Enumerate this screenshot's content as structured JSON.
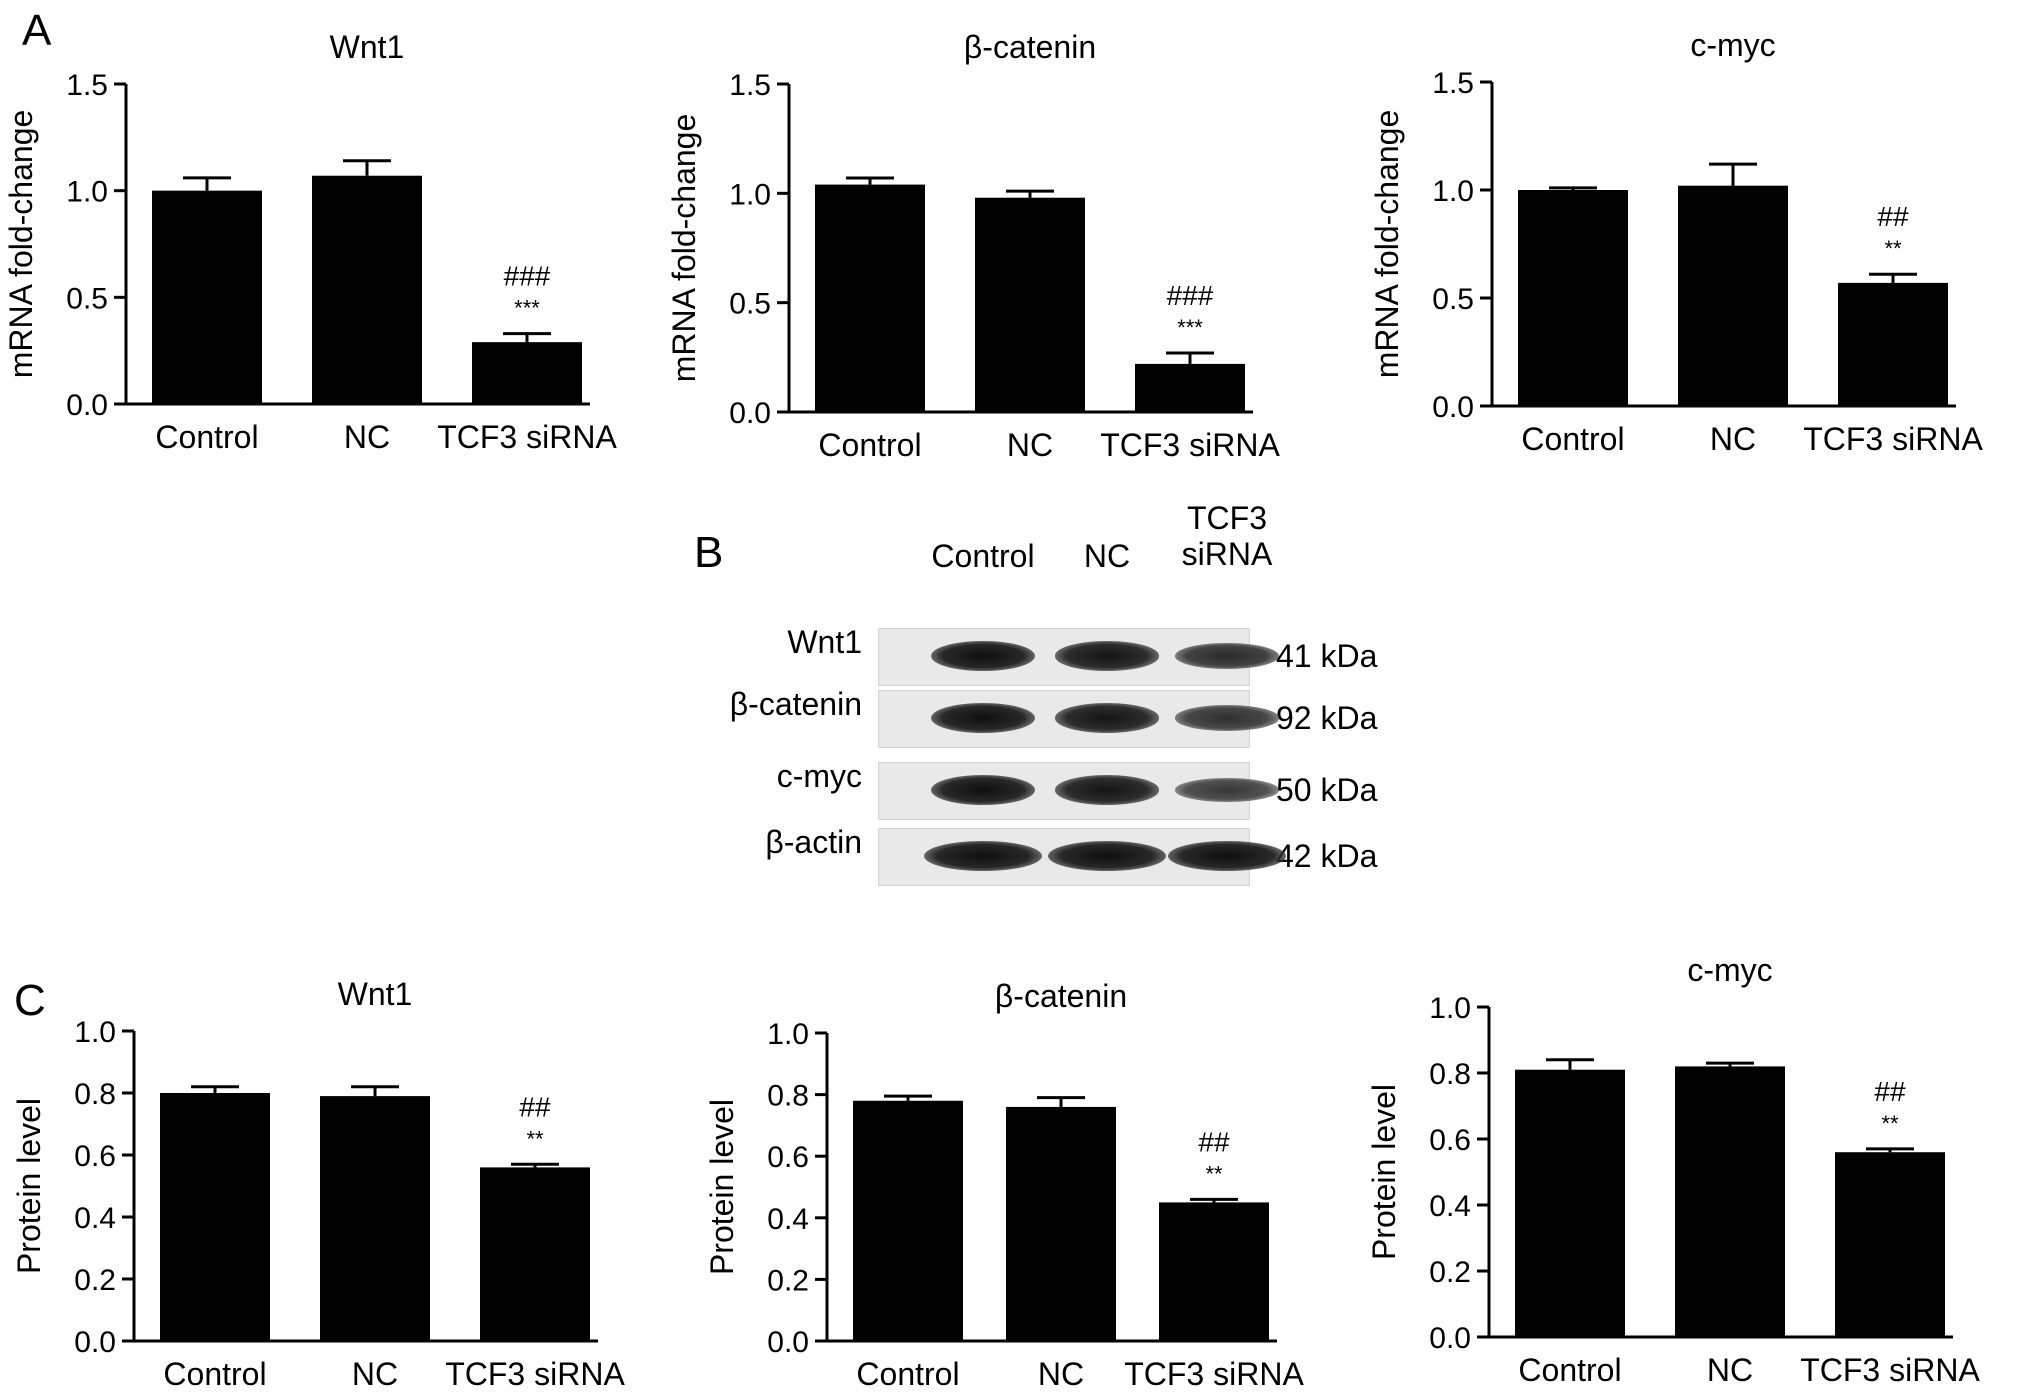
{
  "panels": {
    "A": {
      "letter": "A",
      "charts": [
        {
          "title": "Wnt1",
          "ylabel": "mRNA fold-change",
          "ylim": [
            0,
            1.5
          ],
          "ticks": [
            "0.0",
            "0.5",
            "1.0",
            "1.5"
          ],
          "categories": [
            "Control",
            "NC",
            "TCF3 siRNA"
          ],
          "values": [
            1.0,
            1.07,
            0.29
          ],
          "errors": [
            0.06,
            0.07,
            0.04
          ],
          "annot": [
            "",
            "",
            "###\n***"
          ]
        },
        {
          "title": "β-catenin",
          "ylabel": "mRNA fold-change",
          "ylim": [
            0,
            1.5
          ],
          "ticks": [
            "0.0",
            "0.5",
            "1.0",
            "1.5"
          ],
          "categories": [
            "Control",
            "NC",
            "TCF3 siRNA"
          ],
          "values": [
            1.04,
            0.98,
            0.22
          ],
          "errors": [
            0.03,
            0.03,
            0.05
          ],
          "annot": [
            "",
            "",
            "###\n***"
          ]
        },
        {
          "title": "c-myc",
          "ylabel": "mRNA fold-change",
          "ylim": [
            0,
            1.5
          ],
          "ticks": [
            "0.0",
            "0.5",
            "1.0",
            "1.5"
          ],
          "categories": [
            "Control",
            "NC",
            "TCF3 siRNA"
          ],
          "values": [
            1.0,
            1.02,
            0.57
          ],
          "errors": [
            0.01,
            0.1,
            0.04
          ],
          "annot": [
            "",
            "",
            "##\n**"
          ]
        }
      ]
    },
    "B": {
      "letter": "B",
      "columns": [
        "Control",
        "NC",
        "TCF3\nsiRNA"
      ],
      "rows": [
        {
          "protein": "Wnt1",
          "weight": "41 kDa",
          "intensity": [
            1.0,
            0.95,
            0.7
          ]
        },
        {
          "protein": "β-catenin",
          "weight": "92 kDa",
          "intensity": [
            1.0,
            0.95,
            0.65
          ]
        },
        {
          "protein": "c-myc",
          "weight": "50 kDa",
          "intensity": [
            1.0,
            0.95,
            0.55
          ]
        },
        {
          "protein": "β-actin",
          "weight": "42 kDa",
          "intensity": [
            1.0,
            1.0,
            1.0
          ]
        }
      ]
    },
    "C": {
      "letter": "C",
      "charts": [
        {
          "title": "Wnt1",
          "ylabel": "Protein level",
          "ylim": [
            0,
            1.0
          ],
          "ticks": [
            "0.0",
            "0.2",
            "0.4",
            "0.6",
            "0.8",
            "1.0"
          ],
          "categories": [
            "Control",
            "NC",
            "TCF3 siRNA"
          ],
          "values": [
            0.8,
            0.79,
            0.56
          ],
          "errors": [
            0.02,
            0.03,
            0.01
          ],
          "annot": [
            "",
            "",
            "##\n**"
          ]
        },
        {
          "title": "β-catenin",
          "ylabel": "Protein level",
          "ylim": [
            0,
            1.0
          ],
          "ticks": [
            "0.0",
            "0.2",
            "0.4",
            "0.6",
            "0.8",
            "1.0"
          ],
          "categories": [
            "Control",
            "NC",
            "TCF3 siRNA"
          ],
          "values": [
            0.78,
            0.76,
            0.45
          ],
          "errors": [
            0.015,
            0.03,
            0.01
          ],
          "annot": [
            "",
            "",
            "##\n**"
          ]
        },
        {
          "title": "c-myc",
          "ylabel": "Protein level",
          "ylim": [
            0,
            1.0
          ],
          "ticks": [
            "0.0",
            "0.2",
            "0.4",
            "0.6",
            "0.8",
            "1.0"
          ],
          "categories": [
            "Control",
            "NC",
            "TCF3 siRNA"
          ],
          "values": [
            0.81,
            0.82,
            0.56
          ],
          "errors": [
            0.03,
            0.01,
            0.01
          ],
          "annot": [
            "",
            "",
            "##\n**"
          ]
        }
      ]
    }
  },
  "chart_data": [
    {
      "type": "bar",
      "title": "Wnt1",
      "ylabel": "mRNA fold-change",
      "categories": [
        "Control",
        "NC",
        "TCF3 siRNA"
      ],
      "values": [
        1.0,
        1.07,
        0.29
      ],
      "ylim": [
        0,
        1.5
      ]
    },
    {
      "type": "bar",
      "title": "β-catenin",
      "ylabel": "mRNA fold-change",
      "categories": [
        "Control",
        "NC",
        "TCF3 siRNA"
      ],
      "values": [
        1.04,
        0.98,
        0.22
      ],
      "ylim": [
        0,
        1.5
      ]
    },
    {
      "type": "bar",
      "title": "c-myc",
      "ylabel": "mRNA fold-change",
      "categories": [
        "Control",
        "NC",
        "TCF3 siRNA"
      ],
      "values": [
        1.0,
        1.02,
        0.57
      ],
      "ylim": [
        0,
        1.5
      ]
    },
    {
      "type": "bar",
      "title": "Wnt1",
      "ylabel": "Protein level",
      "categories": [
        "Control",
        "NC",
        "TCF3 siRNA"
      ],
      "values": [
        0.8,
        0.79,
        0.56
      ],
      "ylim": [
        0,
        1.0
      ]
    },
    {
      "type": "bar",
      "title": "β-catenin",
      "ylabel": "Protein level",
      "categories": [
        "Control",
        "NC",
        "TCF3 siRNA"
      ],
      "values": [
        0.78,
        0.76,
        0.45
      ],
      "ylim": [
        0,
        1.0
      ]
    },
    {
      "type": "bar",
      "title": "c-myc",
      "ylabel": "Protein level",
      "categories": [
        "Control",
        "NC",
        "TCF3 siRNA"
      ],
      "values": [
        0.81,
        0.82,
        0.56
      ],
      "ylim": [
        0,
        1.0
      ]
    }
  ]
}
